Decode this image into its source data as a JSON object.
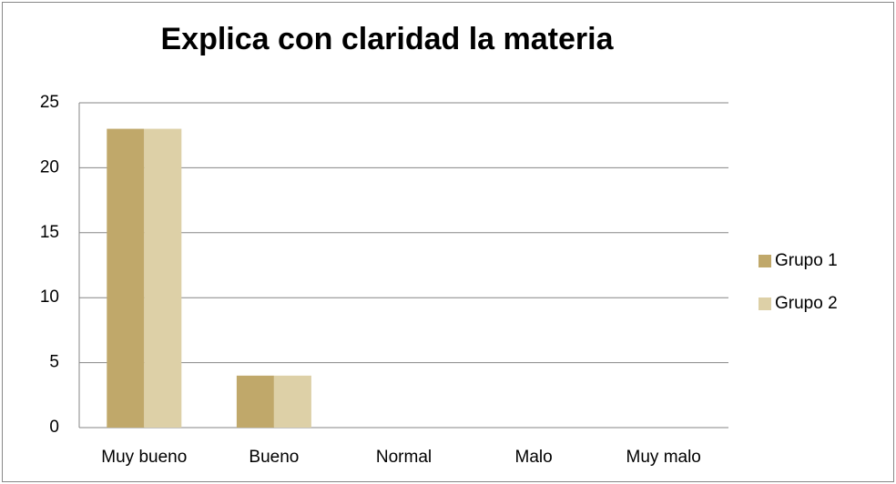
{
  "chart_data": {
    "type": "bar",
    "title": "Explica con claridad la materia",
    "categories": [
      "Muy bueno",
      "Bueno",
      "Normal",
      "Malo",
      "Muy malo"
    ],
    "series": [
      {
        "name": "Grupo 1",
        "color": "#c0a86a",
        "values": [
          23,
          4,
          0,
          0,
          0
        ]
      },
      {
        "name": "Grupo 2",
        "color": "#ddd0a7",
        "values": [
          23,
          4,
          0,
          0,
          0
        ]
      }
    ],
    "ylim": [
      0,
      25
    ],
    "yticks": [
      0,
      5,
      10,
      15,
      20,
      25
    ],
    "grid": true,
    "legend": "right"
  }
}
